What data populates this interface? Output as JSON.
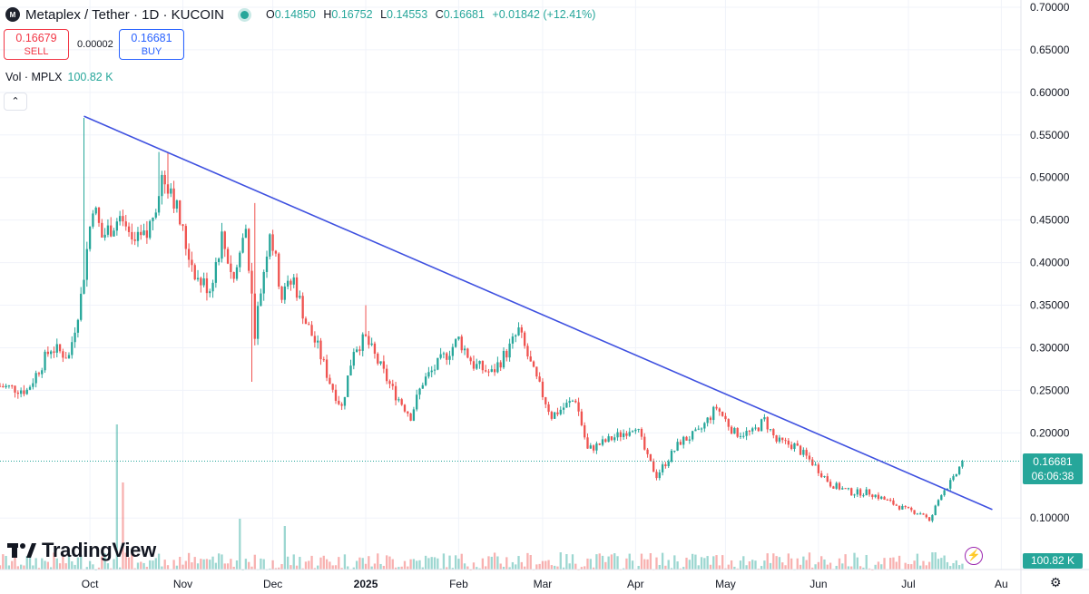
{
  "header": {
    "symbol_icon": "MPLX-logo",
    "title": "Metaplex / Tether · 1D · KUCOIN",
    "ohlc": {
      "o_label": "O",
      "o": "0.14850",
      "h_label": "H",
      "h": "0.16752",
      "l_label": "L",
      "l": "0.14553",
      "c_label": "C",
      "c": "0.16681",
      "change": "+0.01842 (+12.41%)"
    }
  },
  "trade": {
    "sell_price": "0.16679",
    "sell_label": "SELL",
    "spread": "0.00002",
    "buy_price": "0.16681",
    "buy_label": "BUY"
  },
  "volume": {
    "label": "Vol · MPLX",
    "value": "100.82 K"
  },
  "brand": "TradingView",
  "last_price": {
    "price": "0.16681",
    "countdown": "06:06:38"
  },
  "volume_badge": "100.82 K",
  "colors": {
    "up": "#26a69a",
    "down": "#ef5350",
    "trendline": "#3f51e0",
    "grid": "#f0f3fa"
  },
  "chart_data": {
    "type": "candlestick",
    "y_axis": {
      "range": [
        0.08,
        0.7
      ],
      "ticks": [
        "0.70000",
        "0.65000",
        "0.60000",
        "0.55000",
        "0.50000",
        "0.45000",
        "0.40000",
        "0.35000",
        "0.30000",
        "0.25000",
        "0.20000",
        "0.10000"
      ]
    },
    "x_axis": {
      "date_range": [
        "2024-09-01",
        "2025-08-03"
      ],
      "ticks": [
        {
          "label": "Oct",
          "date": "2024-10-01"
        },
        {
          "label": "Nov",
          "date": "2024-11-01"
        },
        {
          "label": "Dec",
          "date": "2024-12-01"
        },
        {
          "label": "2025",
          "date": "2025-01-01",
          "bold": true
        },
        {
          "label": "Feb",
          "date": "2025-02-01"
        },
        {
          "label": "Mar",
          "date": "2025-03-01"
        },
        {
          "label": "Apr",
          "date": "2025-04-01"
        },
        {
          "label": "May",
          "date": "2025-05-01"
        },
        {
          "label": "Jun",
          "date": "2025-06-01"
        },
        {
          "label": "Jul",
          "date": "2025-07-01"
        },
        {
          "label": "Au",
          "date": "2025-08-01"
        }
      ]
    },
    "close_path": [
      [
        "2024-09-01",
        0.255
      ],
      [
        "2024-09-10",
        0.25
      ],
      [
        "2024-09-18",
        0.3
      ],
      [
        "2024-09-24",
        0.29
      ],
      [
        "2024-09-28",
        0.36
      ],
      [
        "2024-10-02",
        0.47
      ],
      [
        "2024-10-05",
        0.43
      ],
      [
        "2024-10-10",
        0.45
      ],
      [
        "2024-10-15",
        0.42
      ],
      [
        "2024-10-20",
        0.43
      ],
      [
        "2024-10-25",
        0.5
      ],
      [
        "2024-10-28",
        0.49
      ],
      [
        "2024-11-02",
        0.42
      ],
      [
        "2024-11-06",
        0.38
      ],
      [
        "2024-11-10",
        0.37
      ],
      [
        "2024-11-14",
        0.43
      ],
      [
        "2024-11-18",
        0.38
      ],
      [
        "2024-11-22",
        0.44
      ],
      [
        "2024-11-25",
        0.32
      ],
      [
        "2024-11-30",
        0.44
      ],
      [
        "2024-12-04",
        0.36
      ],
      [
        "2024-12-08",
        0.38
      ],
      [
        "2024-12-12",
        0.33
      ],
      [
        "2024-12-16",
        0.3
      ],
      [
        "2024-12-20",
        0.26
      ],
      [
        "2024-12-24",
        0.23
      ],
      [
        "2024-12-28",
        0.3
      ],
      [
        "2025-01-01",
        0.31
      ],
      [
        "2025-01-04",
        0.29
      ],
      [
        "2025-01-10",
        0.25
      ],
      [
        "2025-01-16",
        0.22
      ],
      [
        "2025-01-20",
        0.26
      ],
      [
        "2025-01-25",
        0.28
      ],
      [
        "2025-02-01",
        0.31
      ],
      [
        "2025-02-06",
        0.28
      ],
      [
        "2025-02-12",
        0.27
      ],
      [
        "2025-02-18",
        0.3
      ],
      [
        "2025-02-21",
        0.32
      ],
      [
        "2025-02-26",
        0.27
      ],
      [
        "2025-03-04",
        0.22
      ],
      [
        "2025-03-08",
        0.23
      ],
      [
        "2025-03-12",
        0.24
      ],
      [
        "2025-03-16",
        0.18
      ],
      [
        "2025-03-22",
        0.19
      ],
      [
        "2025-03-28",
        0.2
      ],
      [
        "2025-04-01",
        0.21
      ],
      [
        "2025-04-05",
        0.17
      ],
      [
        "2025-04-08",
        0.15
      ],
      [
        "2025-04-12",
        0.17
      ],
      [
        "2025-04-16",
        0.19
      ],
      [
        "2025-04-22",
        0.2
      ],
      [
        "2025-04-28",
        0.23
      ],
      [
        "2025-05-04",
        0.2
      ],
      [
        "2025-05-10",
        0.2
      ],
      [
        "2025-05-14",
        0.215
      ],
      [
        "2025-05-18",
        0.19
      ],
      [
        "2025-05-24",
        0.185
      ],
      [
        "2025-05-30",
        0.165
      ],
      [
        "2025-06-05",
        0.14
      ],
      [
        "2025-06-12",
        0.13
      ],
      [
        "2025-06-18",
        0.13
      ],
      [
        "2025-06-24",
        0.12
      ],
      [
        "2025-06-30",
        0.11
      ],
      [
        "2025-07-06",
        0.105
      ],
      [
        "2025-07-08",
        0.095
      ],
      [
        "2025-07-12",
        0.13
      ],
      [
        "2025-07-16",
        0.145
      ],
      [
        "2025-07-19",
        0.1668
      ]
    ],
    "spikes": [
      {
        "date": "2024-09-29",
        "high": 0.57
      },
      {
        "date": "2024-10-24",
        "high": 0.53
      },
      {
        "date": "2024-10-27",
        "high": 0.53
      },
      {
        "date": "2024-11-25",
        "high": 0.47
      },
      {
        "date": "2024-11-24",
        "low": 0.26
      },
      {
        "date": "2025-01-01",
        "high": 0.35
      },
      {
        "date": "2025-02-21",
        "high": 0.33
      },
      {
        "date": "2025-04-29",
        "high": 0.23
      }
    ],
    "trendline": [
      [
        "2024-09-29",
        0.572
      ],
      [
        "2025-07-29",
        0.11
      ]
    ],
    "last_price": 0.16681,
    "volume_spikes": [
      {
        "date": "2024-10-10",
        "relative": 1.0
      },
      {
        "date": "2024-10-12",
        "relative": 0.6
      },
      {
        "date": "2024-11-20",
        "relative": 0.35
      },
      {
        "date": "2024-12-05",
        "relative": 0.3
      }
    ]
  }
}
